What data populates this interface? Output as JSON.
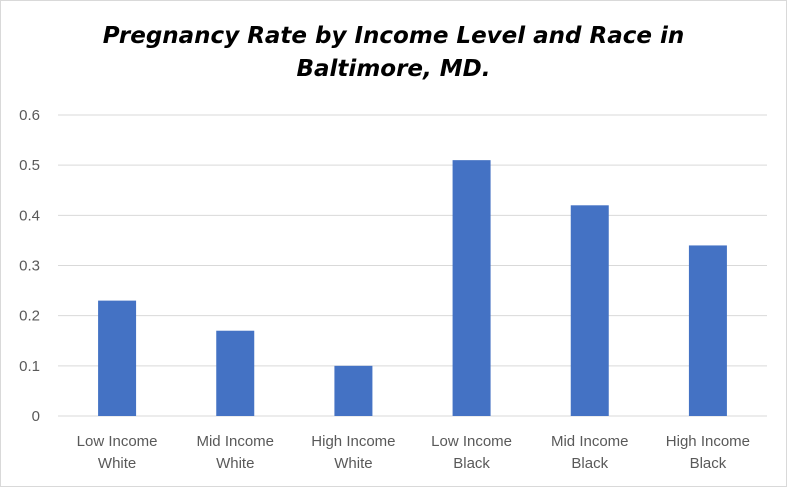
{
  "chart_data": {
    "type": "bar",
    "title_lines": [
      "Pregnancy Rate by Income Level and Race in",
      "Baltimore, MD."
    ],
    "categories": [
      [
        "Low Income",
        "White"
      ],
      [
        "Mid Income",
        "White"
      ],
      [
        "High Income",
        "White"
      ],
      [
        "Low Income",
        "Black"
      ],
      [
        "Mid Income",
        "Black"
      ],
      [
        "High Income",
        "Black"
      ]
    ],
    "values": [
      0.23,
      0.17,
      0.1,
      0.51,
      0.42,
      0.34
    ],
    "ylim": [
      0,
      0.6
    ],
    "yticks": [
      "0",
      "0.1",
      "0.2",
      "0.3",
      "0.4",
      "0.5",
      "0.6"
    ],
    "grid": true,
    "legend": "none",
    "bar_color": "#4472c4",
    "grid_color": "#d9d9d9"
  }
}
